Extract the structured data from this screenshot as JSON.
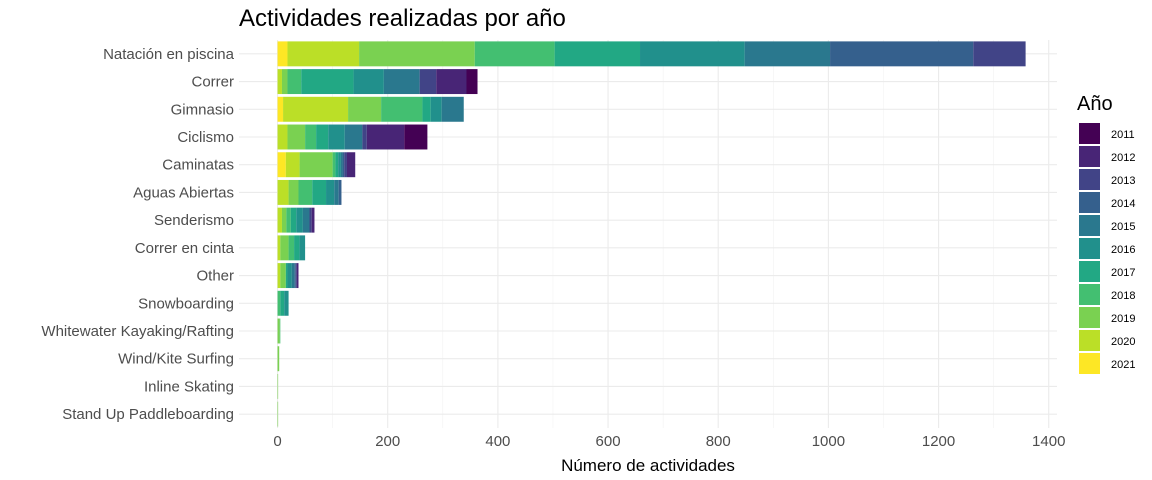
{
  "chart_data": {
    "type": "bar",
    "orientation": "horizontal",
    "stacked": true,
    "title": "Actividades realizadas por año",
    "xlabel": "Número de actividades",
    "ylabel": "",
    "xlim": [
      -70,
      1415
    ],
    "xticks": [
      0,
      200,
      400,
      600,
      800,
      1000,
      1200,
      1400
    ],
    "grid": true,
    "legend_title": "Año",
    "legend_position": "right",
    "categories": [
      "Natación en piscina",
      "Correr",
      "Gimnasio",
      "Ciclismo",
      "Caminatas",
      "Aguas Abiertas",
      "Senderismo",
      "Correr en cinta",
      "Other",
      "Snowboarding",
      "Whitewater Kayaking/Rafting",
      "Wind/Kite Surfing",
      "Inline Skating",
      "Stand Up Paddleboarding"
    ],
    "stack_order": [
      "2021",
      "2020",
      "2019",
      "2018",
      "2017",
      "2016",
      "2015",
      "2014",
      "2013",
      "2012",
      "2011"
    ],
    "legend_order": [
      "2011",
      "2012",
      "2013",
      "2014",
      "2015",
      "2016",
      "2017",
      "2018",
      "2019",
      "2020",
      "2021"
    ],
    "colors": {
      "2011": "#440154",
      "2012": "#482576",
      "2013": "#414487",
      "2014": "#35608D",
      "2015": "#2A788E",
      "2016": "#21908C",
      "2017": "#22A884",
      "2018": "#43BF71",
      "2019": "#7AD151",
      "2020": "#BBDF27",
      "2021": "#FDE725"
    },
    "series": [
      {
        "name": "2011",
        "values": [
          0,
          20,
          0,
          42,
          0,
          0,
          0,
          0,
          0,
          0,
          0,
          0,
          0,
          0
        ]
      },
      {
        "name": "2012",
        "values": [
          0,
          55,
          0,
          68,
          15,
          0,
          5,
          0,
          3,
          0,
          0,
          0,
          0,
          0
        ]
      },
      {
        "name": "2013",
        "values": [
          95,
          30,
          0,
          8,
          5,
          0,
          4,
          0,
          2,
          0,
          0,
          0,
          0,
          0
        ]
      },
      {
        "name": "2014",
        "values": [
          260,
          0,
          0,
          0,
          3,
          5,
          0,
          0,
          2,
          0,
          0,
          0,
          0,
          0
        ]
      },
      {
        "name": "2015",
        "values": [
          155,
          65,
          40,
          32,
          3,
          8,
          12,
          0,
          5,
          0,
          0,
          0,
          0,
          0
        ]
      },
      {
        "name": "2016",
        "values": [
          190,
          55,
          20,
          30,
          5,
          15,
          12,
          10,
          8,
          8,
          0,
          0,
          0,
          0
        ]
      },
      {
        "name": "2017",
        "values": [
          155,
          95,
          15,
          22,
          5,
          25,
          10,
          10,
          3,
          7,
          0,
          0,
          0,
          0
        ]
      },
      {
        "name": "2018",
        "values": [
          145,
          25,
          75,
          20,
          5,
          25,
          8,
          10,
          0,
          5,
          1,
          0,
          0,
          0
        ]
      },
      {
        "name": "2019",
        "values": [
          210,
          10,
          60,
          32,
          60,
          18,
          8,
          15,
          10,
          0,
          4,
          3,
          1,
          1
        ]
      },
      {
        "name": "2020",
        "values": [
          130,
          8,
          118,
          18,
          25,
          20,
          8,
          5,
          5,
          0,
          0,
          0,
          0,
          0
        ]
      },
      {
        "name": "2021",
        "values": [
          18,
          0,
          10,
          0,
          15,
          0,
          0,
          0,
          0,
          0,
          0,
          0,
          0,
          0
        ]
      }
    ]
  }
}
